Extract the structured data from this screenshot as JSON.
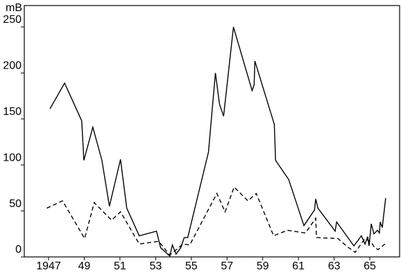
{
  "chart_data": {
    "type": "line",
    "ylabel": "mB",
    "xlim": [
      1945.64,
      1966.67
    ],
    "ylim": [
      0,
      273.3
    ],
    "yticks": [
      0,
      50,
      100,
      150,
      200,
      250
    ],
    "xticks": [
      1947,
      {
        "value": 1949,
        "label": "49"
      },
      {
        "value": 1951,
        "label": "51"
      },
      {
        "value": 1953,
        "label": "53"
      },
      {
        "value": 1955,
        "label": "55"
      },
      {
        "value": 1957,
        "label": "57"
      },
      {
        "value": 1959,
        "label": "59"
      },
      {
        "value": 1961,
        "label": "61"
      },
      {
        "value": 1963,
        "label": "63"
      },
      {
        "value": 1965,
        "label": "65"
      }
    ],
    "series": [
      {
        "color": "#000000",
        "line_style": "solid",
        "x": [
          1947.08,
          1947.9,
          1948.86,
          1948.98,
          1949.48,
          1949.99,
          1950.41,
          1951.03,
          1951.38,
          1952.08,
          1953.05,
          1953.28,
          1953.79,
          1953.94,
          1954.14,
          1954.41,
          1954.6,
          1954.8,
          1955.96,
          1956.35,
          1956.58,
          1956.81,
          1957.36,
          1958.4,
          1958.52,
          1958.56,
          1959.65,
          1959.72,
          1960.46,
          1961.31,
          1961.9,
          1961.97,
          1962.09,
          1963.06,
          1963.14,
          1964.11,
          1964.53,
          1964.73,
          1964.88,
          1964.96,
          1965.08,
          1965.23,
          1965.43,
          1965.54,
          1965.58,
          1965.7,
          1965.89
        ],
        "values": [
          161,
          189,
          148,
          105,
          141,
          105,
          55,
          106,
          53,
          23,
          28,
          10,
          1,
          13,
          3,
          10,
          21,
          21,
          114,
          200,
          166,
          153,
          250,
          181,
          187,
          213,
          144,
          105,
          84,
          34,
          51,
          63,
          53,
          28,
          38,
          12,
          23,
          14,
          22,
          12,
          36,
          25,
          29,
          26,
          38,
          32,
          64
        ]
      },
      {
        "color": "#000000",
        "line_style": "dashed",
        "x": [
          1946.9,
          1947.78,
          1949.02,
          1949.56,
          1950.53,
          1951.03,
          1952.08,
          1953.17,
          1953.79,
          1954.53,
          1954.91,
          1956.43,
          1956.89,
          1957.4,
          1958.17,
          1958.64,
          1959.61,
          1960.38,
          1961.39,
          1961.97,
          1962.01,
          1963.21,
          1963.75,
          1964.18,
          1964.73,
          1965.08,
          1965.27,
          1965.46,
          1965.85
        ],
        "values": [
          53,
          61,
          20,
          59,
          40,
          49,
          14,
          17,
          2,
          14,
          13,
          69,
          49,
          76,
          61,
          69,
          23,
          29,
          26,
          42,
          21,
          20,
          11,
          5,
          20,
          16,
          10,
          8,
          14
        ]
      }
    ]
  }
}
